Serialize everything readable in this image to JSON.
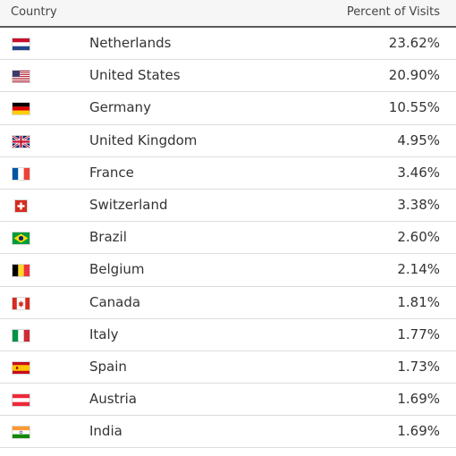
{
  "header": {
    "country_label": "Country",
    "percent_label": "Percent of Visits"
  },
  "rows": [
    {
      "flag": "netherlands-flag-icon",
      "country": "Netherlands",
      "percent": "23.62%"
    },
    {
      "flag": "united-states-flag-icon",
      "country": "United States",
      "percent": "20.90%"
    },
    {
      "flag": "germany-flag-icon",
      "country": "Germany",
      "percent": "10.55%"
    },
    {
      "flag": "united-kingdom-flag-icon",
      "country": "United Kingdom",
      "percent": "4.95%"
    },
    {
      "flag": "france-flag-icon",
      "country": "France",
      "percent": "3.46%"
    },
    {
      "flag": "switzerland-flag-icon",
      "country": "Switzerland",
      "percent": "3.38%"
    },
    {
      "flag": "brazil-flag-icon",
      "country": "Brazil",
      "percent": "2.60%"
    },
    {
      "flag": "belgium-flag-icon",
      "country": "Belgium",
      "percent": "2.14%"
    },
    {
      "flag": "canada-flag-icon",
      "country": "Canada",
      "percent": "1.81%"
    },
    {
      "flag": "italy-flag-icon",
      "country": "Italy",
      "percent": "1.77%"
    },
    {
      "flag": "spain-flag-icon",
      "country": "Spain",
      "percent": "1.73%"
    },
    {
      "flag": "austria-flag-icon",
      "country": "Austria",
      "percent": "1.69%"
    },
    {
      "flag": "india-flag-icon",
      "country": "India",
      "percent": "1.69%"
    }
  ]
}
